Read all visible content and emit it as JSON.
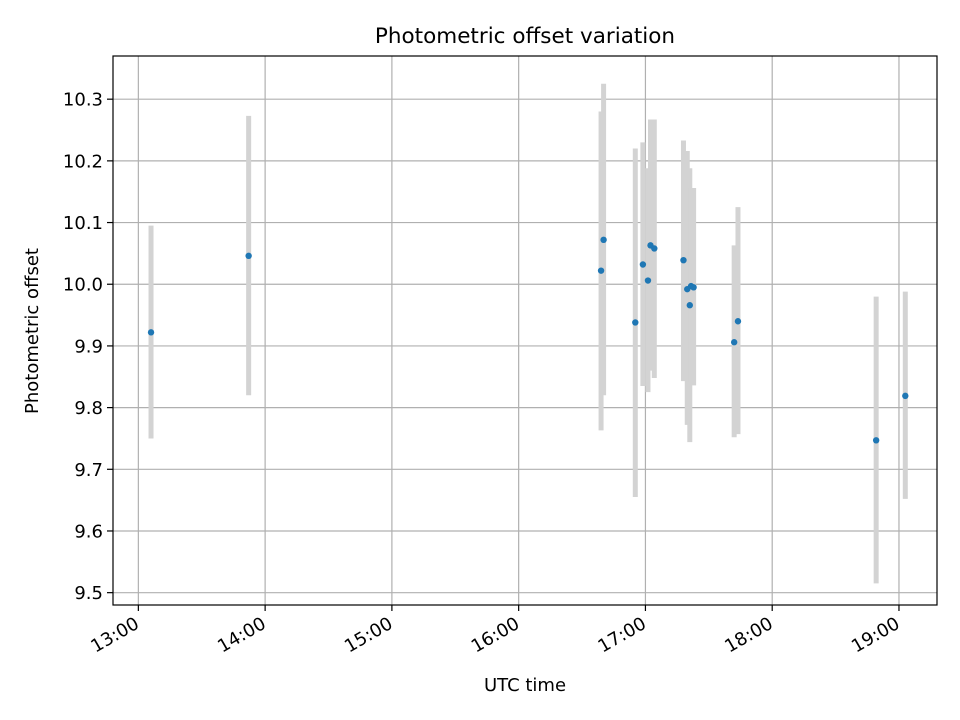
{
  "chart_data": {
    "type": "scatter",
    "title": "Photometric offset variation",
    "xlabel": "UTC time",
    "ylabel": "Photometric offset",
    "x_unit": "hours (UTC)",
    "xlim": [
      12.8,
      19.3
    ],
    "ylim": [
      9.48,
      10.37
    ],
    "x_ticks": [
      {
        "value": 13,
        "label": "13:00"
      },
      {
        "value": 14,
        "label": "14:00"
      },
      {
        "value": 15,
        "label": "15:00"
      },
      {
        "value": 16,
        "label": "16:00"
      },
      {
        "value": 17,
        "label": "17:00"
      },
      {
        "value": 18,
        "label": "18:00"
      },
      {
        "value": 19,
        "label": "19:00"
      }
    ],
    "y_ticks": [
      {
        "value": 9.5,
        "label": "9.5"
      },
      {
        "value": 9.6,
        "label": "9.6"
      },
      {
        "value": 9.7,
        "label": "9.7"
      },
      {
        "value": 9.8,
        "label": "9.8"
      },
      {
        "value": 9.9,
        "label": "9.9"
      },
      {
        "value": 10.0,
        "label": "10.0"
      },
      {
        "value": 10.1,
        "label": "10.1"
      },
      {
        "value": 10.2,
        "label": "10.2"
      },
      {
        "value": 10.3,
        "label": "10.3"
      }
    ],
    "grid": true,
    "marker_color": "#1f77b4",
    "errorbar_color": "#d3d3d3",
    "points": [
      {
        "x": 13.1,
        "y": 9.922,
        "yerr_low": 9.75,
        "yerr_high": 10.095
      },
      {
        "x": 13.87,
        "y": 10.046,
        "yerr_low": 9.82,
        "yerr_high": 10.273
      },
      {
        "x": 16.65,
        "y": 10.022,
        "yerr_low": 9.763,
        "yerr_high": 10.28
      },
      {
        "x": 16.67,
        "y": 10.072,
        "yerr_low": 9.82,
        "yerr_high": 10.325
      },
      {
        "x": 16.92,
        "y": 9.938,
        "yerr_low": 9.655,
        "yerr_high": 10.22
      },
      {
        "x": 16.98,
        "y": 10.032,
        "yerr_low": 9.835,
        "yerr_high": 10.23
      },
      {
        "x": 17.02,
        "y": 10.006,
        "yerr_low": 9.825,
        "yerr_high": 10.188
      },
      {
        "x": 17.04,
        "y": 10.063,
        "yerr_low": 9.86,
        "yerr_high": 10.267
      },
      {
        "x": 17.07,
        "y": 10.058,
        "yerr_low": 9.848,
        "yerr_high": 10.267
      },
      {
        "x": 17.3,
        "y": 10.039,
        "yerr_low": 9.843,
        "yerr_high": 10.233
      },
      {
        "x": 17.33,
        "y": 9.992,
        "yerr_low": 9.772,
        "yerr_high": 10.216
      },
      {
        "x": 17.35,
        "y": 9.966,
        "yerr_low": 9.744,
        "yerr_high": 10.188
      },
      {
        "x": 17.36,
        "y": 9.997,
        "yerr_low": 9.84,
        "yerr_high": 10.156
      },
      {
        "x": 17.38,
        "y": 9.995,
        "yerr_low": 9.836,
        "yerr_high": 10.156
      },
      {
        "x": 17.7,
        "y": 9.906,
        "yerr_low": 9.752,
        "yerr_high": 10.063
      },
      {
        "x": 17.73,
        "y": 9.94,
        "yerr_low": 9.757,
        "yerr_high": 10.125
      },
      {
        "x": 18.82,
        "y": 9.747,
        "yerr_low": 9.515,
        "yerr_high": 9.98
      },
      {
        "x": 19.05,
        "y": 9.819,
        "yerr_low": 9.652,
        "yerr_high": 9.988
      }
    ]
  }
}
